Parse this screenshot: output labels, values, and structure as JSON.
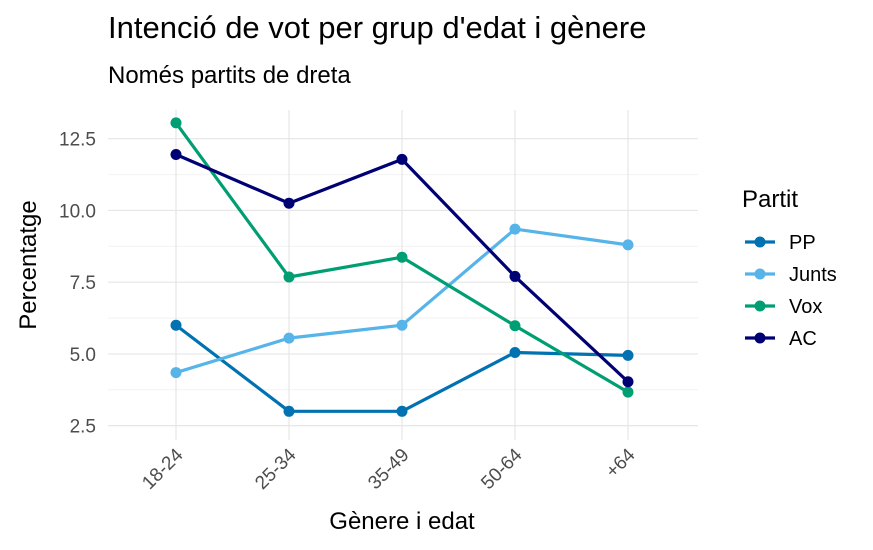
{
  "chart_data": {
    "type": "line",
    "title": "Intenció de vot per grup d'edat i gènere",
    "subtitle": "Només partits de dreta",
    "xlabel": "Gènere i edat",
    "ylabel": "Percentatge",
    "categories": [
      "18-24",
      "25-34",
      "35-49",
      "50-64",
      "+64"
    ],
    "y_ticks": [
      2.5,
      5.0,
      7.5,
      10.0,
      12.5
    ],
    "y_tick_labels": [
      "2.5",
      "5.0",
      "7.5",
      "10.0",
      "12.5"
    ],
    "ylim": [
      2.0,
      13.5
    ],
    "grid": true,
    "legend": {
      "title": "Partit",
      "position": "right"
    },
    "series": [
      {
        "name": "PP",
        "color": "#0072B2",
        "values": [
          6.0,
          3.0,
          3.0,
          5.05,
          4.95
        ]
      },
      {
        "name": "Junts",
        "color": "#56B4E9",
        "values": [
          4.35,
          5.55,
          6.0,
          9.35,
          8.8
        ]
      },
      {
        "name": "Vox",
        "color": "#009E73",
        "values": [
          13.05,
          7.68,
          8.37,
          5.98,
          3.67
        ]
      },
      {
        "name": "AC",
        "color": "#000075",
        "values": [
          11.95,
          10.25,
          11.78,
          7.7,
          4.03
        ]
      }
    ]
  }
}
